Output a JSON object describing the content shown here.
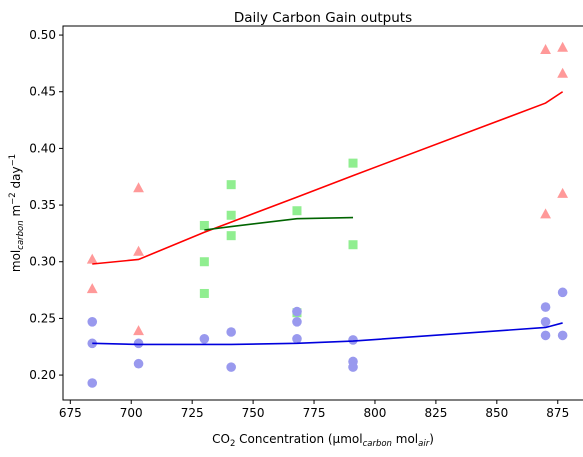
{
  "chart_data": {
    "type": "scatter",
    "title": "Daily Carbon Gain outputs",
    "xlabel": {
      "base": "CO",
      "sub1": "2",
      "mid": " Concentration (µmol",
      "sub2": "carbon",
      "mid2": " mol",
      "sub3": "air",
      "end": ")"
    },
    "ylabel": {
      "base": "mol",
      "sub1": "carbon",
      "mid": " m",
      "sup1": "−2",
      "mid2": " day",
      "sup2": "−1"
    },
    "xlim": [
      672,
      887
    ],
    "ylim": [
      0.178,
      0.508
    ],
    "xticks": [
      675,
      700,
      725,
      750,
      775,
      800,
      825,
      850,
      875
    ],
    "yticks": [
      0.2,
      0.25,
      0.3,
      0.35,
      0.4,
      0.45,
      0.5
    ],
    "ytick_labels": [
      "0.20",
      "0.25",
      "0.30",
      "0.35",
      "0.40",
      "0.45",
      "0.50"
    ],
    "grid": false,
    "scatter_series": [
      {
        "marker": "triangle",
        "color": "#ff9999",
        "points": [
          [
            684,
            0.302
          ],
          [
            684,
            0.276
          ],
          [
            703,
            0.365
          ],
          [
            703,
            0.309
          ],
          [
            703,
            0.239
          ],
          [
            870,
            0.487
          ],
          [
            870,
            0.342
          ],
          [
            877,
            0.489
          ],
          [
            877,
            0.466
          ],
          [
            877,
            0.36
          ]
        ]
      },
      {
        "marker": "square",
        "color": "#90ee90",
        "points": [
          [
            730,
            0.332
          ],
          [
            730,
            0.3
          ],
          [
            730,
            0.272
          ],
          [
            741,
            0.368
          ],
          [
            741,
            0.341
          ],
          [
            741,
            0.323
          ],
          [
            768,
            0.345
          ],
          [
            768,
            0.255
          ],
          [
            791,
            0.387
          ],
          [
            791,
            0.315
          ]
        ]
      },
      {
        "marker": "circle",
        "color": "#9999ee",
        "points": [
          [
            684,
            0.247
          ],
          [
            684,
            0.228
          ],
          [
            684,
            0.193
          ],
          [
            703,
            0.228
          ],
          [
            703,
            0.21
          ],
          [
            730,
            0.232
          ],
          [
            741,
            0.238
          ],
          [
            741,
            0.207
          ],
          [
            768,
            0.256
          ],
          [
            768,
            0.247
          ],
          [
            768,
            0.232
          ],
          [
            791,
            0.231
          ],
          [
            791,
            0.212
          ],
          [
            791,
            0.207
          ],
          [
            870,
            0.26
          ],
          [
            870,
            0.247
          ],
          [
            870,
            0.235
          ],
          [
            877,
            0.273
          ],
          [
            877,
            0.235
          ]
        ]
      }
    ],
    "line_series": [
      {
        "color": "#ff0000",
        "points": [
          [
            684,
            0.298
          ],
          [
            703,
            0.302
          ],
          [
            730,
            0.326
          ],
          [
            741,
            0.335
          ],
          [
            768,
            0.357
          ],
          [
            791,
            0.376
          ],
          [
            870,
            0.44
          ],
          [
            877,
            0.45
          ]
        ]
      },
      {
        "color": "#006400",
        "points": [
          [
            730,
            0.328
          ],
          [
            741,
            0.331
          ],
          [
            768,
            0.338
          ],
          [
            791,
            0.339
          ]
        ]
      },
      {
        "color": "#0000dd",
        "points": [
          [
            684,
            0.228
          ],
          [
            703,
            0.227
          ],
          [
            730,
            0.227
          ],
          [
            741,
            0.227
          ],
          [
            768,
            0.228
          ],
          [
            791,
            0.23
          ],
          [
            870,
            0.242
          ],
          [
            877,
            0.246
          ]
        ]
      }
    ]
  }
}
